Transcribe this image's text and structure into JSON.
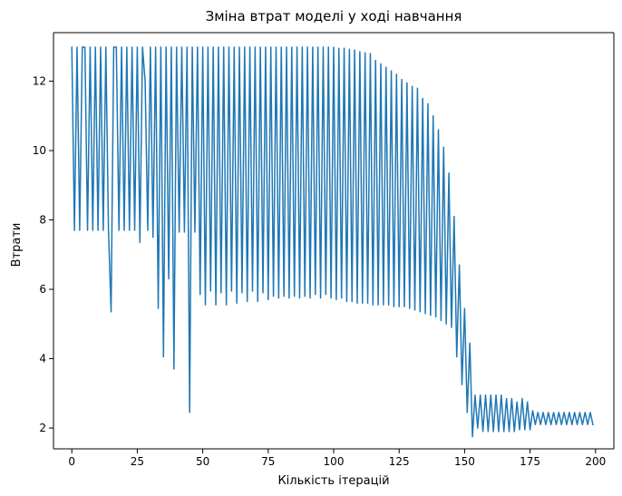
{
  "chart_data": {
    "type": "line",
    "title": "Зміна втрат моделі у ході навчання",
    "xlabel": "Кількість ітерацій",
    "ylabel": "Втрати",
    "xlim": [
      -7,
      207
    ],
    "ylim": [
      1.4,
      13.4
    ],
    "xticks": [
      0,
      25,
      50,
      75,
      100,
      125,
      150,
      175,
      200
    ],
    "yticks": [
      2,
      4,
      6,
      8,
      10,
      12
    ],
    "grid": false,
    "series": [
      {
        "color": "#1f77b4",
        "x": [
          0,
          1,
          2,
          3,
          4,
          5,
          6,
          7,
          8,
          9,
          10,
          11,
          12,
          13,
          14,
          15,
          16,
          17,
          18,
          19,
          20,
          21,
          22,
          23,
          24,
          25,
          26,
          27,
          28,
          29,
          30,
          31,
          32,
          33,
          34,
          35,
          36,
          37,
          38,
          39,
          40,
          41,
          42,
          43,
          44,
          45,
          46,
          47,
          48,
          49,
          50,
          51,
          52,
          53,
          54,
          55,
          56,
          57,
          58,
          59,
          60,
          61,
          62,
          63,
          64,
          65,
          66,
          67,
          68,
          69,
          70,
          71,
          72,
          73,
          74,
          75,
          76,
          77,
          78,
          79,
          80,
          81,
          82,
          83,
          84,
          85,
          86,
          87,
          88,
          89,
          90,
          91,
          92,
          93,
          94,
          95,
          96,
          97,
          98,
          99,
          100,
          101,
          102,
          103,
          104,
          105,
          106,
          107,
          108,
          109,
          110,
          111,
          112,
          113,
          114,
          115,
          116,
          117,
          118,
          119,
          120,
          121,
          122,
          123,
          124,
          125,
          126,
          127,
          128,
          129,
          130,
          131,
          132,
          133,
          134,
          135,
          136,
          137,
          138,
          139,
          140,
          141,
          142,
          143,
          144,
          145,
          146,
          147,
          148,
          149,
          150,
          151,
          152,
          153,
          154,
          155,
          156,
          157,
          158,
          159,
          160,
          161,
          162,
          163,
          164,
          165,
          166,
          167,
          168,
          169,
          170,
          171,
          172,
          173,
          174,
          175,
          176,
          177,
          178,
          179,
          180,
          181,
          182,
          183,
          184,
          185,
          186,
          187,
          188,
          189,
          190,
          191,
          192,
          193,
          194,
          195,
          196,
          197,
          198,
          199
        ],
        "y": [
          12.98,
          7.7,
          12.98,
          7.7,
          12.98,
          12.98,
          7.7,
          12.98,
          7.7,
          12.98,
          7.7,
          12.98,
          7.7,
          12.98,
          7.7,
          5.35,
          12.98,
          12.98,
          7.7,
          12.98,
          7.7,
          12.98,
          7.7,
          12.98,
          7.7,
          12.98,
          7.35,
          12.98,
          12.0,
          7.7,
          12.98,
          7.5,
          12.98,
          5.45,
          12.98,
          4.05,
          12.98,
          6.3,
          12.98,
          3.7,
          12.98,
          7.65,
          12.98,
          7.65,
          12.98,
          2.45,
          12.98,
          7.65,
          12.98,
          5.85,
          12.98,
          5.55,
          12.98,
          5.95,
          12.98,
          5.55,
          12.98,
          5.9,
          12.98,
          5.55,
          12.98,
          5.95,
          12.98,
          5.6,
          12.98,
          5.9,
          12.98,
          5.65,
          12.98,
          5.95,
          12.98,
          5.65,
          12.98,
          5.9,
          12.98,
          5.7,
          12.98,
          5.8,
          12.98,
          5.75,
          12.98,
          5.8,
          12.98,
          5.75,
          12.98,
          5.8,
          12.98,
          5.75,
          12.98,
          5.8,
          12.98,
          5.75,
          12.98,
          5.85,
          12.98,
          5.75,
          12.98,
          5.85,
          12.98,
          5.75,
          12.98,
          5.7,
          12.95,
          5.75,
          12.95,
          5.65,
          12.92,
          5.65,
          12.9,
          5.6,
          12.85,
          5.6,
          12.82,
          5.6,
          12.8,
          5.55,
          12.6,
          5.55,
          12.5,
          5.55,
          12.4,
          5.55,
          12.3,
          5.5,
          12.2,
          5.5,
          12.05,
          5.5,
          11.95,
          5.45,
          11.85,
          5.4,
          11.8,
          5.35,
          11.5,
          5.3,
          11.35,
          5.25,
          11.0,
          5.2,
          10.6,
          5.1,
          10.1,
          5.0,
          9.35,
          4.9,
          8.1,
          4.05,
          6.7,
          3.25,
          5.45,
          2.45,
          4.45,
          1.75,
          2.95,
          2.0,
          2.95,
          1.9,
          2.95,
          1.9,
          2.95,
          1.9,
          2.95,
          1.9,
          2.95,
          1.9,
          2.85,
          1.9,
          2.85,
          1.9,
          2.75,
          1.95,
          2.85,
          1.95,
          2.75,
          1.95,
          2.5,
          2.1,
          2.45,
          2.1,
          2.45,
          2.1,
          2.45,
          2.1,
          2.45,
          2.1,
          2.45,
          2.1,
          2.45,
          2.1,
          2.45,
          2.1,
          2.45,
          2.1,
          2.45,
          2.1,
          2.45,
          2.1,
          2.45,
          2.1
        ]
      }
    ]
  }
}
